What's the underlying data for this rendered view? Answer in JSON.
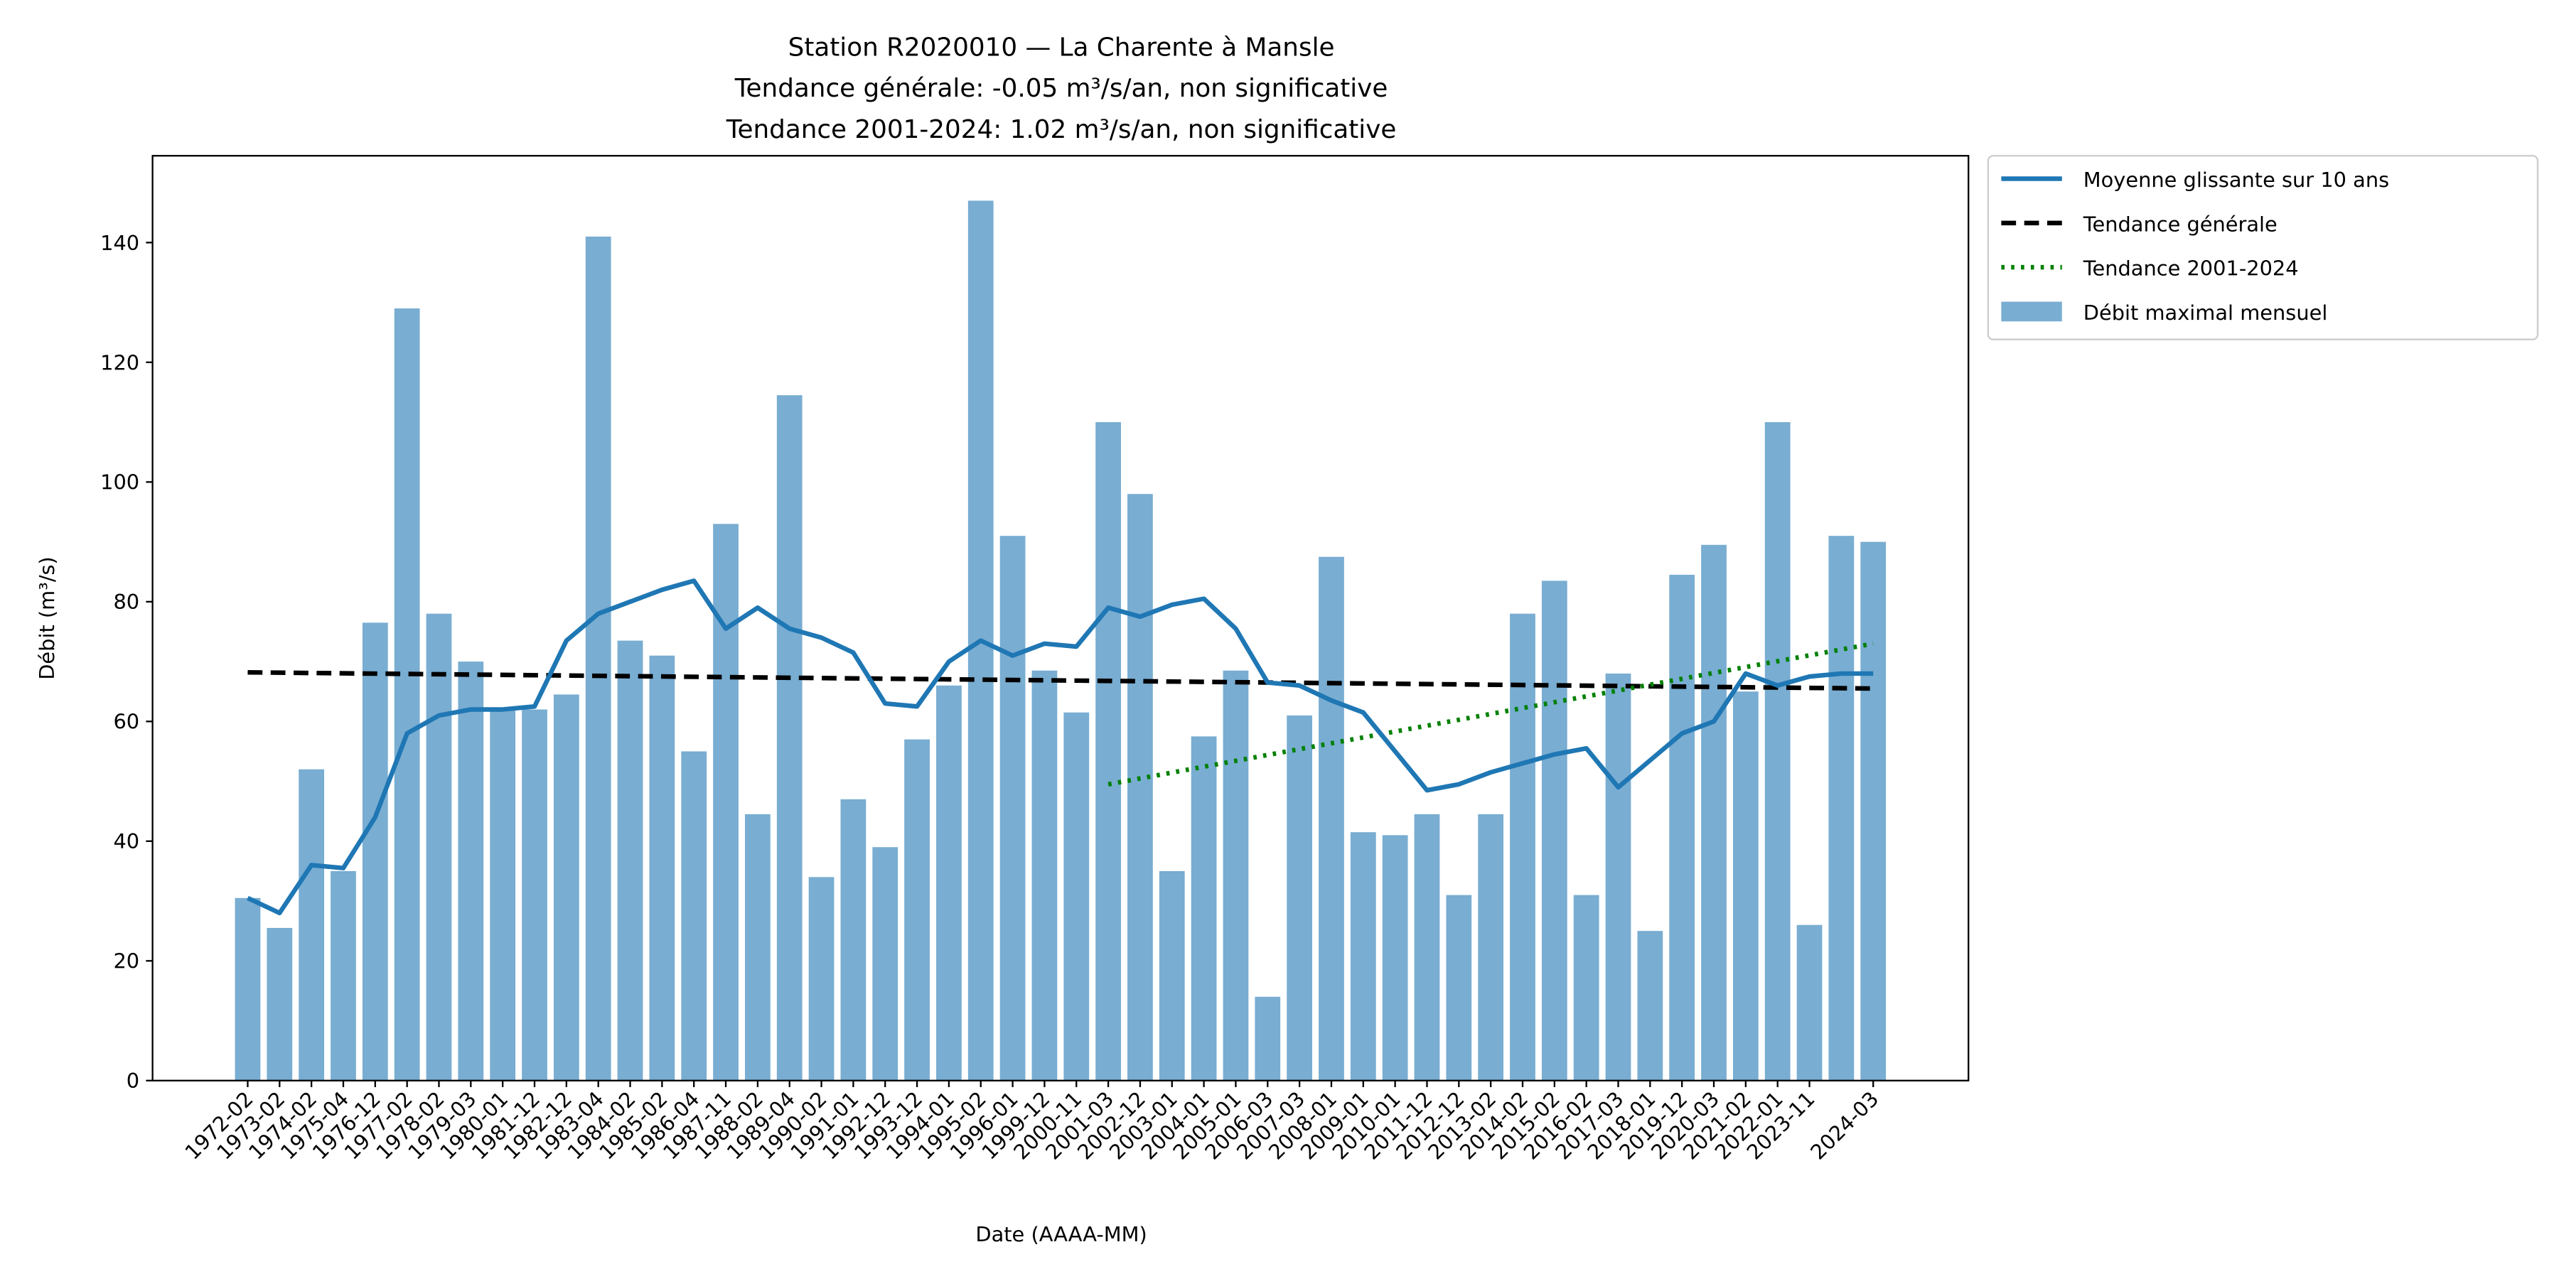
{
  "chart_data": {
    "type": "bar",
    "title": [
      "Station R2020010 — La Charente à Mansle",
      "Tendance générale: -0.05 m³/s/an, non significative",
      "Tendance 2001-2024: 1.02 m³/s/an, non significative"
    ],
    "xlabel": "Date (AAAA-MM)",
    "ylabel": "Débit (m³/s)",
    "categories": [
      "1972-02",
      "1973-02",
      "1974-02",
      "1975-04",
      "1976-12",
      "1977-02",
      "1978-02",
      "1979-03",
      "1980-01",
      "1981-12",
      "1982-12",
      "1983-04",
      "1984-02",
      "1985-02",
      "1986-04",
      "1987-11",
      "1988-02",
      "1989-04",
      "1990-02",
      "1991-01",
      "1992-12",
      "1993-12",
      "1994-01",
      "1995-02",
      "1996-01",
      "1999-12",
      "2000-11",
      "2001-03",
      "2002-12",
      "2003-01",
      "2004-01",
      "2005-01",
      "2006-03",
      "2007-03",
      "2008-01",
      "2009-01",
      "2010-01",
      "2011-12",
      "2012-12",
      "2013-02",
      "2014-02",
      "2015-02",
      "2016-02",
      "2017-03",
      "2018-01",
      "2019-12",
      "2020-03",
      "2021-02",
      "2022-01",
      "2023-11",
      null,
      "2024-03"
    ],
    "series": [
      {
        "name": "Débit maximal mensuel",
        "kind": "bar",
        "color": "#79add2",
        "values": [
          30.5,
          25.5,
          52,
          35,
          76.5,
          129,
          78,
          70,
          62,
          62,
          64.5,
          141,
          73.5,
          71,
          55,
          93,
          44.5,
          114.5,
          34,
          47,
          39,
          57,
          66,
          147,
          91,
          68.5,
          61.5,
          110,
          98,
          35,
          57.5,
          68.5,
          14,
          61,
          87.5,
          41.5,
          41,
          44.5,
          31,
          44.5,
          78,
          83.5,
          31,
          68,
          25,
          84.5,
          89.5,
          65,
          110,
          26,
          91,
          90
        ]
      },
      {
        "name": "Moyenne glissante sur 10 ans",
        "kind": "line",
        "color": "#1f77b4",
        "values": [
          30.5,
          28,
          36,
          35.5,
          44,
          58,
          61,
          62,
          62,
          62.5,
          73.5,
          78,
          80,
          82,
          83.5,
          75.5,
          79,
          75.5,
          74,
          71.5,
          63,
          62.5,
          70,
          73.5,
          71,
          73,
          72.5,
          79,
          77.5,
          79.5,
          80.5,
          75.5,
          66.5,
          66,
          63.5,
          61.5,
          55,
          48.5,
          49.5,
          51.5,
          53,
          54.5,
          55.5,
          49,
          53.5,
          58,
          60,
          68,
          66,
          67.5,
          68,
          68
        ]
      },
      {
        "name": "Tendance générale",
        "kind": "trend",
        "color": "#000000",
        "dash": "dashed",
        "x": [
          "1972-02",
          "2024-03"
        ],
        "values": [
          68.2,
          65.5
        ]
      },
      {
        "name": "Tendance 2001-2024",
        "kind": "trend",
        "color": "#008000",
        "dash": "dotted",
        "x": [
          "2001-03",
          "2024-03"
        ],
        "values": [
          49.5,
          73
        ]
      }
    ],
    "ylim": [
      0,
      154.5
    ],
    "yticks": [
      0,
      20,
      40,
      60,
      80,
      100,
      120,
      140
    ],
    "legend": "outside upper right"
  }
}
